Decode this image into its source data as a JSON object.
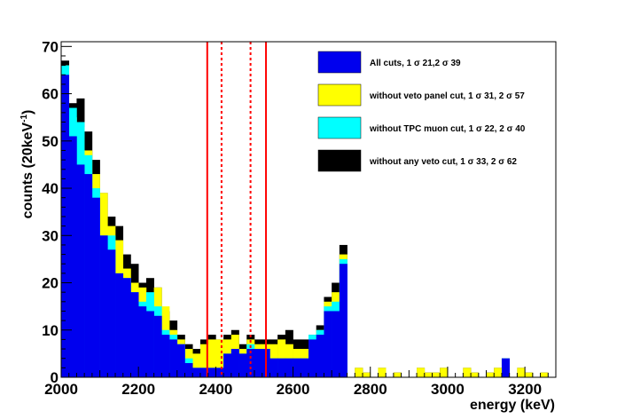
{
  "chart_data": {
    "type": "bar",
    "xlabel": "energy (keV)",
    "ylabel_main": "counts (20keV",
    "ylabel_sup": "-1",
    "ylabel_close": ")",
    "xlim": [
      2000,
      2280
    ],
    "ylim": [
      0,
      71
    ],
    "x_ticks": [
      2000,
      2200,
      2400,
      2600,
      2800,
      3000,
      3200
    ],
    "y_ticks": [
      0,
      10,
      20,
      30,
      40,
      50,
      60,
      70
    ],
    "bin_width": 20,
    "bin_start": 1980,
    "series": [
      {
        "name": "All cuts, 1 σ 21,2 σ 39",
        "color": "#0000ee",
        "values": [
          64,
          51,
          45,
          43,
          38,
          30,
          27,
          22,
          21,
          18,
          15,
          14,
          13,
          9,
          8,
          7,
          3,
          2,
          2,
          2,
          2,
          5,
          6,
          5,
          6,
          6,
          6,
          4,
          4,
          4,
          4,
          4,
          8,
          9,
          14,
          14,
          24,
          13,
          12,
          8,
          6,
          2,
          2,
          0,
          0,
          0,
          0,
          0,
          0,
          0,
          0,
          0,
          0,
          0,
          0,
          0,
          0,
          0,
          0,
          0,
          0,
          0,
          0,
          0,
          0,
          0
        ]
      },
      {
        "name": "without veto panel cut, 1 σ 31, 2 σ 57",
        "color": "#ffff00",
        "values": [
          66,
          55,
          53,
          48,
          43,
          39,
          32,
          29,
          23,
          20,
          19,
          17,
          19,
          15,
          10,
          8,
          6,
          5,
          7,
          8,
          8,
          8,
          9,
          6,
          8,
          7,
          7,
          7,
          8,
          7,
          6,
          6,
          8,
          10,
          16,
          18,
          26,
          15,
          14,
          9,
          6,
          3,
          3,
          0,
          0,
          0,
          0,
          0,
          0,
          0,
          0,
          0,
          0,
          0,
          0,
          0,
          0,
          0,
          0,
          0,
          0,
          0,
          0,
          0,
          0,
          0
        ]
      },
      {
        "name": "without TPC muon cut, 1 σ 22, 2 σ 40",
        "color": "#00ffff",
        "values": [
          66,
          57,
          54,
          47,
          40,
          30,
          30,
          22,
          21,
          18,
          16,
          18,
          15,
          10,
          9,
          7,
          4,
          2,
          2,
          2,
          2,
          5,
          6,
          5,
          7,
          6,
          6,
          4,
          4,
          4,
          4,
          4,
          9,
          10,
          15,
          16,
          25,
          14,
          13,
          9,
          6,
          3,
          2,
          0,
          0,
          0,
          0,
          0,
          0,
          0,
          0,
          0,
          0,
          0,
          0,
          0,
          0,
          0,
          0,
          0,
          0,
          0,
          0,
          0,
          0,
          0
        ]
      },
      {
        "name": "without any veto cut, 1 σ 33, 2 σ 62",
        "color": "#000000",
        "values": [
          67,
          58,
          59,
          52,
          46,
          39,
          34,
          32,
          26,
          24,
          20,
          21,
          19,
          14,
          12,
          9,
          7,
          6,
          8,
          9,
          8,
          9,
          10,
          7,
          9,
          8,
          8,
          8,
          9,
          10,
          8,
          8,
          9,
          11,
          17,
          20,
          28,
          16,
          15,
          10,
          7,
          4,
          3,
          0,
          0,
          0,
          0,
          0,
          0,
          0,
          0,
          0,
          0,
          0,
          0,
          0,
          0,
          0,
          0,
          0,
          0,
          0,
          0,
          0,
          0,
          0
        ]
      }
    ],
    "legend": [
      {
        "label": "All cuts, 1 σ 21,2 σ 39",
        "color": "#0000ee"
      },
      {
        "label": "without veto panel cut, 1 σ 31, 2 σ 57",
        "color": "#ffff00"
      },
      {
        "label": "without TPC muon cut, 1 σ 22, 2 σ 40",
        "color": "#00ffff"
      },
      {
        "label": "without any veto cut, 1 σ 33, 2 σ 62",
        "color": "#000000"
      }
    ],
    "solid_lines": [
      2378,
      2530
    ],
    "dashed_lines": [
      2415,
      2490
    ],
    "line_color": "#ff0000"
  }
}
